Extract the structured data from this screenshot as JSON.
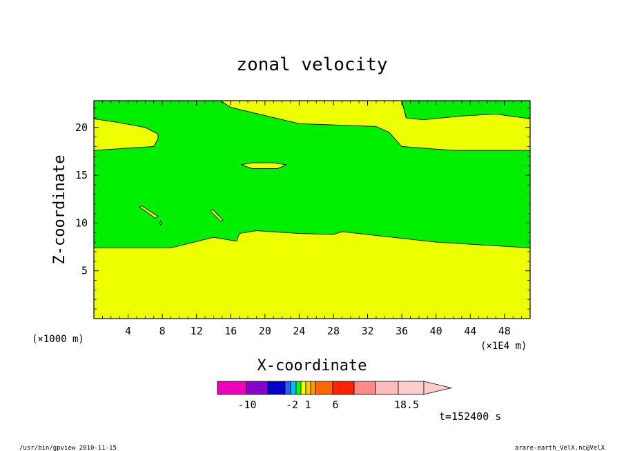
{
  "chart_data": {
    "type": "contour",
    "title": "zonal velocity",
    "xlabel": "X-coordinate",
    "ylabel": "Z-coordinate",
    "x_unit_left": "(×1000 m)",
    "x_unit_right": "(×1E4 m)",
    "xlim": [
      0,
      51
    ],
    "ylim": [
      0,
      22.8
    ],
    "xticks": [
      4,
      8,
      12,
      16,
      20,
      24,
      28,
      32,
      36,
      40,
      44,
      48
    ],
    "yticks": [
      5,
      10,
      15,
      20
    ],
    "grid": false,
    "colors": {
      "positive_region": "#eeff00",
      "negative_region": "#00ee00"
    },
    "regions": [
      {
        "level": "yellow",
        "points": [
          [
            0,
            0
          ],
          [
            51,
            0
          ],
          [
            51,
            7.4
          ],
          [
            40,
            8
          ],
          [
            29,
            9.1
          ],
          [
            28,
            8.8
          ],
          [
            24,
            8.9
          ],
          [
            19,
            9.2
          ],
          [
            17,
            8.9
          ],
          [
            16.7,
            8.1
          ],
          [
            14,
            8.5
          ],
          [
            9,
            7.4
          ],
          [
            0,
            7.4
          ]
        ]
      },
      {
        "level": "yellow",
        "points": [
          [
            0,
            17.6
          ],
          [
            7,
            18
          ],
          [
            7.5,
            18.8
          ],
          [
            7.5,
            19.3
          ],
          [
            6,
            20
          ],
          [
            3,
            20.5
          ],
          [
            0,
            20.9
          ]
        ]
      },
      {
        "level": "yellow",
        "points": [
          [
            14.8,
            22.8
          ],
          [
            16,
            22.1
          ],
          [
            24,
            20.4
          ],
          [
            33,
            20.1
          ],
          [
            34.5,
            19.5
          ],
          [
            36,
            18
          ],
          [
            42,
            17.6
          ],
          [
            51,
            17.6
          ],
          [
            51,
            20.9
          ],
          [
            47,
            21.4
          ],
          [
            43,
            21.2
          ],
          [
            38.5,
            20.8
          ],
          [
            36.5,
            21
          ],
          [
            36,
            22.8
          ]
        ]
      },
      {
        "level": "yellow",
        "points": [
          [
            17.2,
            16.1
          ],
          [
            18.5,
            16.3
          ],
          [
            21,
            16.3
          ],
          [
            22.5,
            16.1
          ],
          [
            21.5,
            15.7
          ],
          [
            18.5,
            15.7
          ]
        ]
      },
      {
        "level": "yellow",
        "points": [
          [
            5.3,
            11.7
          ],
          [
            5.6,
            11.8
          ],
          [
            7.5,
            10.7
          ],
          [
            7.2,
            10.5
          ]
        ]
      },
      {
        "level": "yellow",
        "points": [
          [
            13.6,
            11.3
          ],
          [
            13.9,
            11.4
          ],
          [
            15.1,
            10.3
          ],
          [
            14.8,
            10.2
          ]
        ]
      },
      {
        "level": "yellow",
        "points": [
          [
            7.7,
            10.0
          ],
          [
            7.8,
            10.2
          ],
          [
            7.9,
            10.0
          ],
          [
            7.8,
            9.8
          ]
        ]
      }
    ],
    "colorbar": {
      "tick_labels": [
        "-10",
        "-2",
        "1",
        "6",
        "18.5"
      ],
      "colors": [
        "#ee00bb",
        "#8800cc",
        "#0000cc",
        "#2266ff",
        "#00bbff",
        "#00ff00",
        "#eeff00",
        "#ffcc00",
        "#ff9900",
        "#ff6600",
        "#ff2200",
        "#ff8888",
        "#ffbbbb",
        "#ffcccc"
      ]
    },
    "annotation": "t=152400 s"
  },
  "footer": {
    "left": "/usr/bin/gpview   2010-11-15",
    "right": "arare-earth_VelX.nc@VelX"
  }
}
